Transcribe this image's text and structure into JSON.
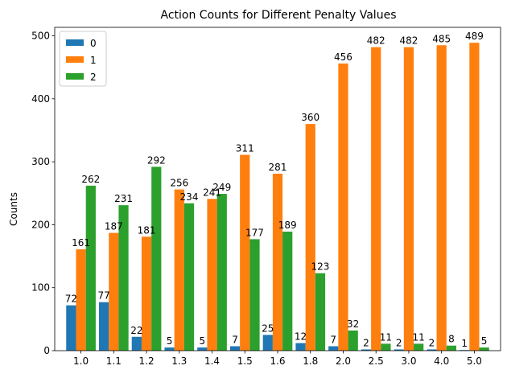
{
  "chart_data": {
    "type": "bar",
    "title": "Action Counts for Different Penalty Values",
    "xlabel": "",
    "ylabel": "Counts",
    "categories": [
      "1.0",
      "1.1",
      "1.2",
      "1.3",
      "1.4",
      "1.5",
      "1.6",
      "1.8",
      "2.0",
      "2.5",
      "3.0",
      "4.0",
      "5.0"
    ],
    "series": [
      {
        "name": "0",
        "color": "#1f77b4",
        "values": [
          72,
          77,
          22,
          5,
          5,
          7,
          25,
          12,
          7,
          2,
          2,
          2,
          1
        ]
      },
      {
        "name": "1",
        "color": "#ff7f0e",
        "values": [
          161,
          187,
          181,
          256,
          241,
          311,
          281,
          360,
          456,
          482,
          482,
          485,
          489
        ]
      },
      {
        "name": "2",
        "color": "#2ca02c",
        "values": [
          262,
          231,
          292,
          234,
          249,
          177,
          189,
          123,
          32,
          11,
          11,
          8,
          5
        ]
      }
    ],
    "ylim": [
      0,
      513.45
    ],
    "yticks": [
      0,
      100,
      200,
      300,
      400,
      500
    ],
    "grid": false,
    "legend_position": "top-left",
    "data_labels": true
  }
}
